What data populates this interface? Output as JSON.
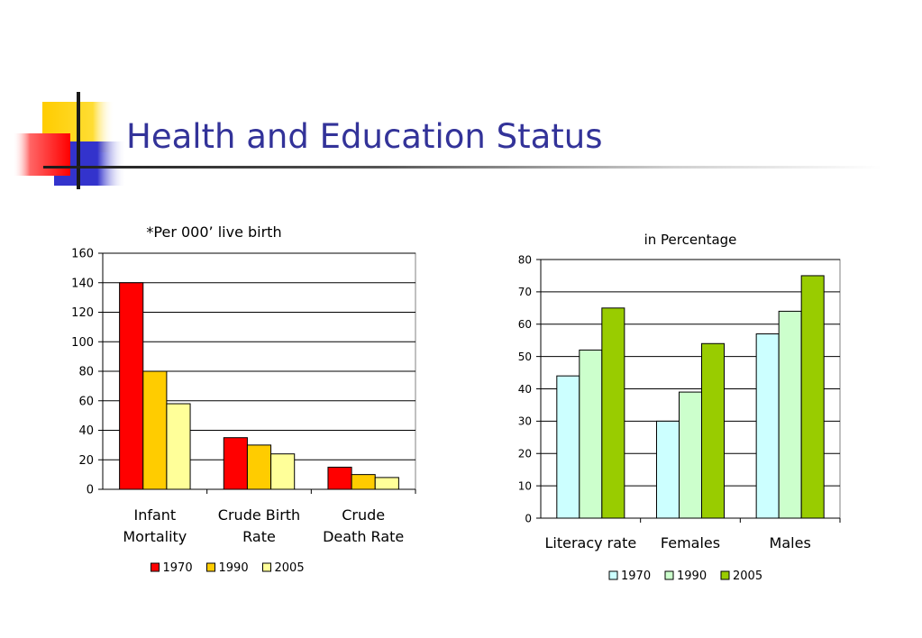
{
  "title": "Health and Education Status",
  "chart_data": [
    {
      "type": "bar",
      "title": "*Per 000’ live birth",
      "categories": [
        [
          "Infant",
          "Mortality"
        ],
        [
          "Crude Birth",
          "Rate"
        ],
        [
          "Crude",
          "Death Rate"
        ]
      ],
      "series": [
        {
          "name": "1970",
          "color": "#ff0000",
          "values": [
            140,
            35,
            15
          ]
        },
        {
          "name": "1990",
          "color": "#ffcc00",
          "values": [
            80,
            30,
            10
          ]
        },
        {
          "name": "2005",
          "color": "#ffff99",
          "values": [
            58,
            24,
            8
          ]
        }
      ],
      "ylim": [
        0,
        160
      ],
      "ticks": [
        0,
        20,
        40,
        60,
        80,
        100,
        120,
        140,
        160
      ],
      "grid": true,
      "legend": "bottom"
    },
    {
      "type": "bar",
      "title": "in Percentage",
      "categories": [
        [
          "Literacy rate"
        ],
        [
          "Females"
        ],
        [
          "Males"
        ]
      ],
      "series": [
        {
          "name": "1970",
          "color": "#ccffff",
          "values": [
            44,
            30,
            57
          ]
        },
        {
          "name": "1990",
          "color": "#ccffcc",
          "values": [
            52,
            39,
            64
          ]
        },
        {
          "name": "2005",
          "color": "#99cc00",
          "values": [
            65,
            54,
            75
          ]
        }
      ],
      "ylim": [
        0,
        80
      ],
      "ticks": [
        0,
        10,
        20,
        30,
        40,
        50,
        60,
        70,
        80
      ],
      "grid": true,
      "legend": "bottom"
    }
  ]
}
